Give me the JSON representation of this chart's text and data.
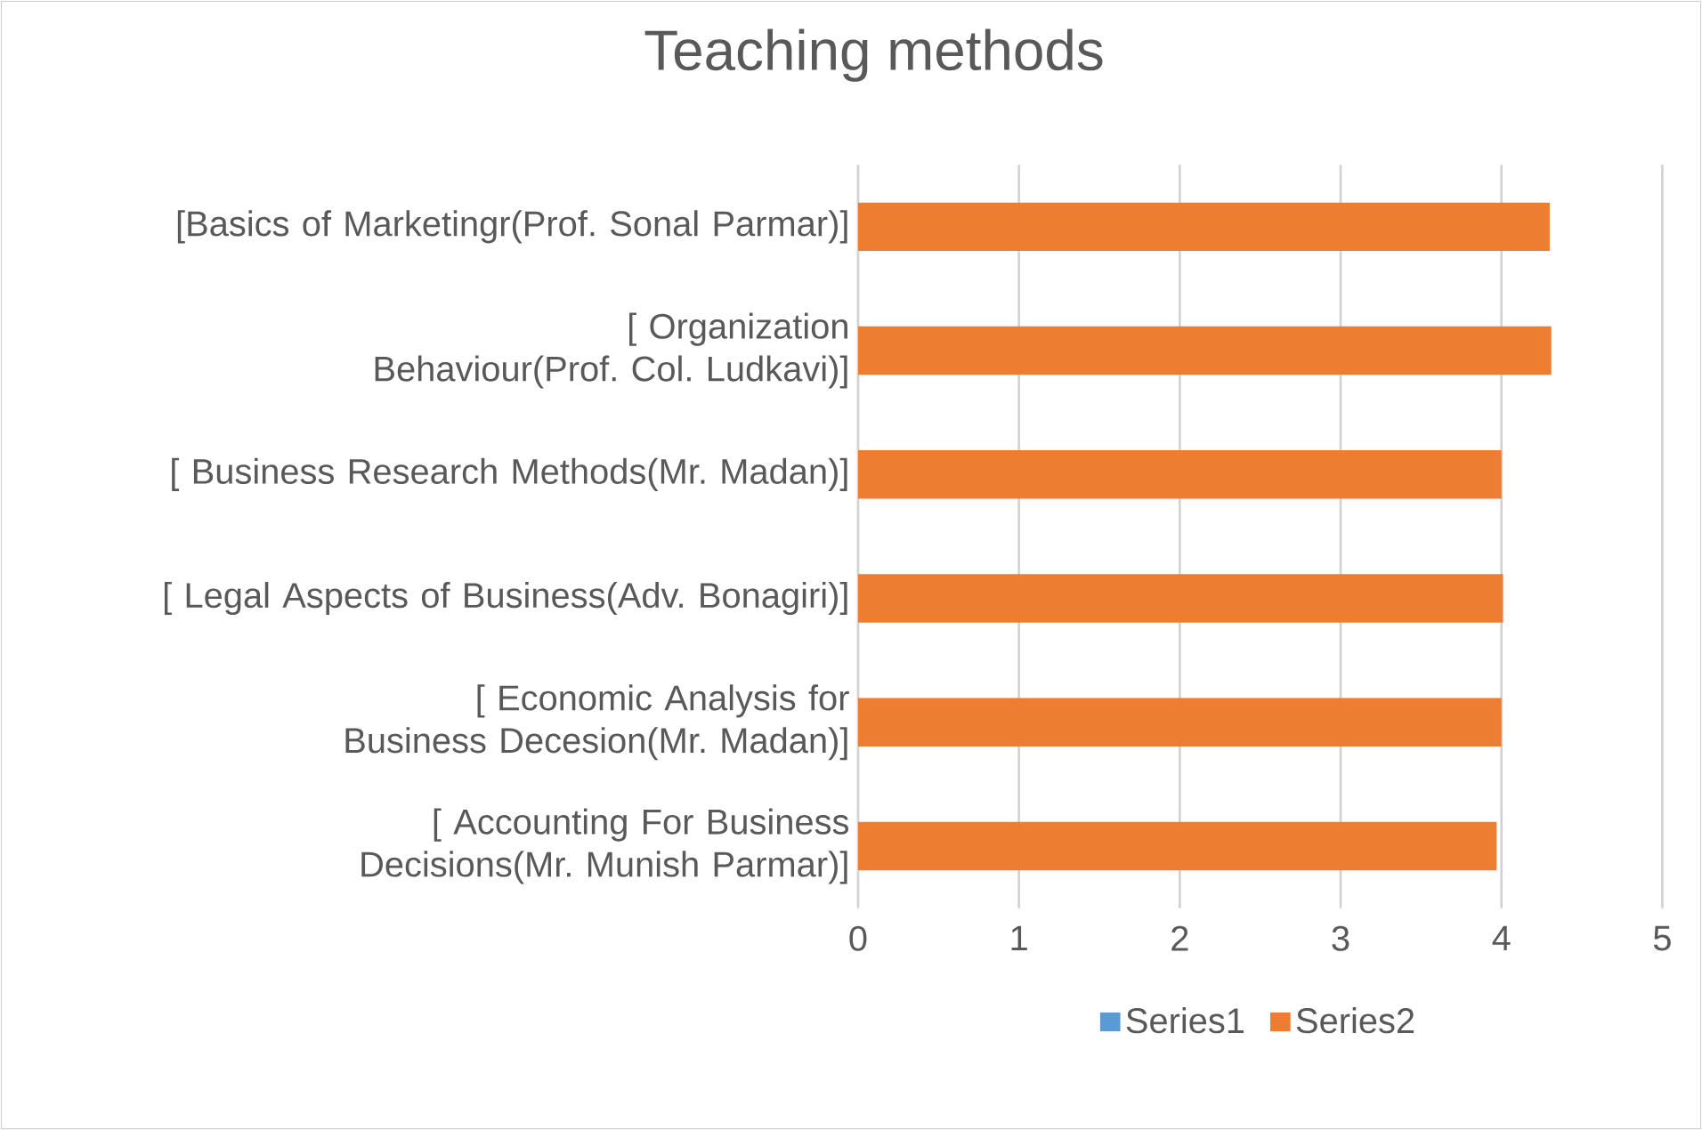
{
  "chart_data": {
    "type": "bar",
    "orientation": "horizontal",
    "title": "Teaching methods",
    "categories": [
      "[Basics of Marketingr(Prof. Sonal Parmar)]",
      "[ Organization Behaviour(Prof. Col. Ludkavi)]",
      "[ Business Research Methods(Mr. Madan)]",
      "[ Legal Aspects of Business(Adv. Bonagiri)]",
      "[ Economic Analysis for Business Decesion(Mr. Madan)]",
      "[  Accounting For Business Decisions(Mr. Munish Parmar)]"
    ],
    "series": [
      {
        "name": "Series1",
        "color": "#5b9bd5",
        "values": [
          null,
          null,
          null,
          null,
          null,
          null
        ]
      },
      {
        "name": "Series2",
        "color": "#ed7d31",
        "values": [
          4.3,
          4.31,
          4.0,
          4.01,
          4.0,
          3.97
        ]
      }
    ],
    "xlim": [
      0,
      5
    ],
    "xticks": [
      0,
      1,
      2,
      3,
      4,
      5
    ],
    "grid": "x",
    "legend": "bottom"
  }
}
